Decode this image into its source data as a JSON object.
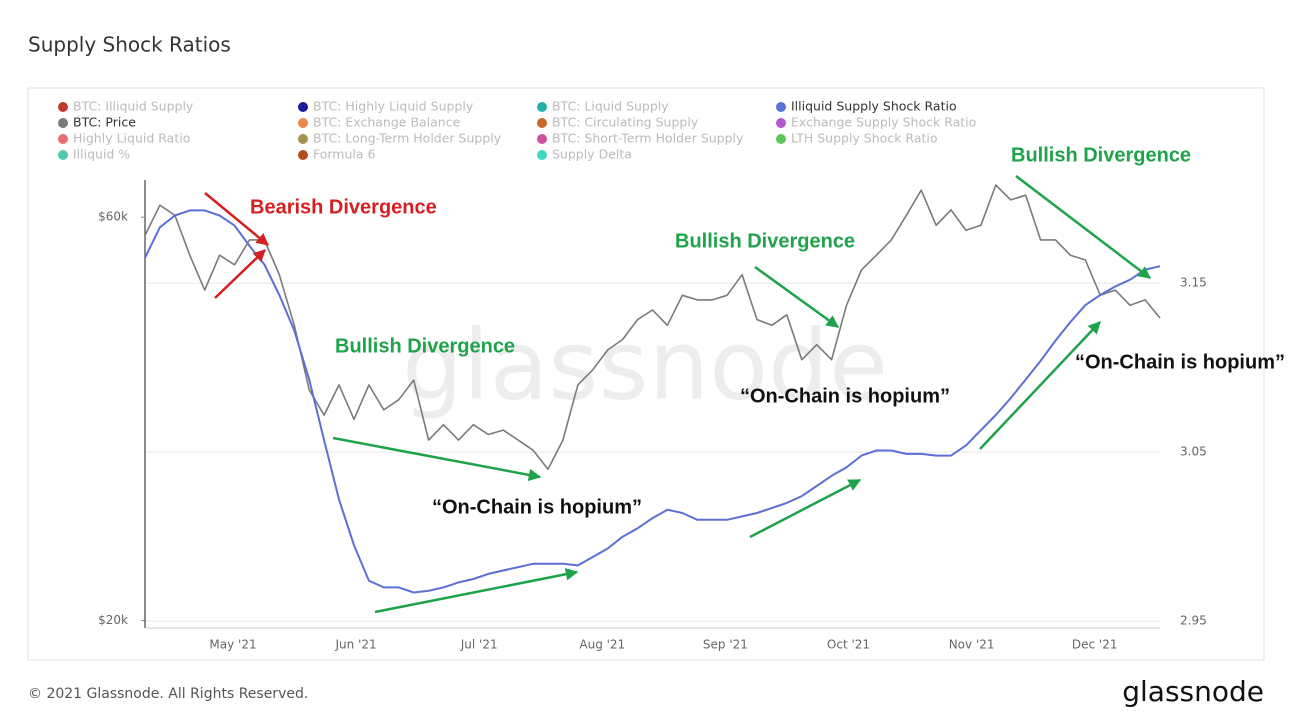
{
  "chart_data": {
    "type": "line",
    "title": "Supply Shock Ratios",
    "xtick_labels": [
      "May '21",
      "Jun '21",
      "Jul '21",
      "Aug '21",
      "Sep '21",
      "Oct '21",
      "Nov '21",
      "Dec '21"
    ],
    "ylim": [
      19600,
      66400
    ],
    "ylog": true,
    "yticks": [
      {
        "value": 20000,
        "label": "$20k"
      },
      {
        "value": 60000,
        "label": "$60k"
      }
    ],
    "y2lim": [
      2.946,
      3.211
    ],
    "y2ticks": [
      2.95,
      3.05,
      3.15
    ],
    "grid": true,
    "series": [
      {
        "name": "Illiquid Supply Shock Ratio",
        "color": "#5b6fd6",
        "axis": "y2",
        "values": [
          3.165,
          3.183,
          3.19,
          3.193,
          3.193,
          3.19,
          3.184,
          3.172,
          3.161,
          3.143,
          3.122,
          3.093,
          3.057,
          3.022,
          2.995,
          2.974,
          2.97,
          2.97,
          2.967,
          2.968,
          2.97,
          2.973,
          2.975,
          2.978,
          2.98,
          2.982,
          2.984,
          2.984,
          2.984,
          2.983,
          2.988,
          2.993,
          3.0,
          3.005,
          3.011,
          3.016,
          3.014,
          3.01,
          3.01,
          3.01,
          3.012,
          3.014,
          3.017,
          3.02,
          3.024,
          3.03,
          3.036,
          3.041,
          3.048,
          3.051,
          3.051,
          3.049,
          3.049,
          3.048,
          3.048,
          3.054,
          3.063,
          3.072,
          3.082,
          3.093,
          3.104,
          3.116,
          3.127,
          3.137,
          3.143,
          3.148,
          3.152,
          3.158,
          3.16
        ]
      },
      {
        "name": "BTC: Price",
        "color": "#7a7a7a",
        "axis": "y",
        "values": [
          57100,
          62000,
          60300,
          54100,
          49200,
          54100,
          52700,
          56400,
          56400,
          51300,
          44700,
          37500,
          35000,
          38000,
          34600,
          38000,
          35500,
          36500,
          38500,
          32700,
          34100,
          32700,
          34100,
          33200,
          33600,
          32700,
          31800,
          30200,
          32700,
          38000,
          39600,
          41800,
          43000,
          45400,
          46600,
          44700,
          48500,
          47900,
          47900,
          48500,
          51300,
          45400,
          44700,
          46000,
          40700,
          42400,
          40700,
          47200,
          52000,
          54100,
          56400,
          60300,
          64600,
          58700,
          61200,
          57900,
          58700,
          65500,
          62900,
          63700,
          56400,
          56400,
          54100,
          53400,
          48500,
          49200,
          47200,
          47900,
          45600
        ]
      }
    ],
    "inactive_legend": [
      {
        "name": "BTC: Illiquid Supply",
        "color": "#c0392b"
      },
      {
        "name": "BTC: Highly Liquid Supply",
        "color": "#1a1aa0"
      },
      {
        "name": "BTC: Liquid Supply",
        "color": "#20b2aa"
      },
      {
        "name": "BTC: Exchange Balance",
        "color": "#e8894a"
      },
      {
        "name": "BTC: Circulating Supply",
        "color": "#c8662a"
      },
      {
        "name": "Exchange Supply Shock Ratio",
        "color": "#b05ad0"
      },
      {
        "name": "Highly Liquid Ratio",
        "color": "#e87070"
      },
      {
        "name": "BTC: Long-Term Holder Supply",
        "color": "#a89050"
      },
      {
        "name": "BTC: Short-Term Holder Supply",
        "color": "#d050a0"
      },
      {
        "name": "LTH Supply Shock Ratio",
        "color": "#5cc85c"
      },
      {
        "name": "Illiquid %",
        "color": "#50c8b0"
      },
      {
        "name": "Formula 6",
        "color": "#b05020"
      },
      {
        "name": "Supply Delta",
        "color": "#40d8c0"
      }
    ],
    "annotations": [
      {
        "text": "Bearish Divergence",
        "color": "#d42020"
      },
      {
        "text": "Bullish Divergence",
        "color": "#1fa34a"
      },
      {
        "text": "Bullish Divergence",
        "color": "#1fa34a"
      },
      {
        "text": "Bullish Divergence",
        "color": "#1fa34a"
      },
      {
        "text": "“On-Chain is hopium”",
        "color": "#111111"
      },
      {
        "text": "“On-Chain is hopium”",
        "color": "#111111"
      },
      {
        "text": "“On-Chain is hopium”",
        "color": "#111111"
      }
    ],
    "watermark": "glassnode",
    "footer": "© 2021 Glassnode. All Rights Reserved.",
    "logo": "glassnode"
  }
}
